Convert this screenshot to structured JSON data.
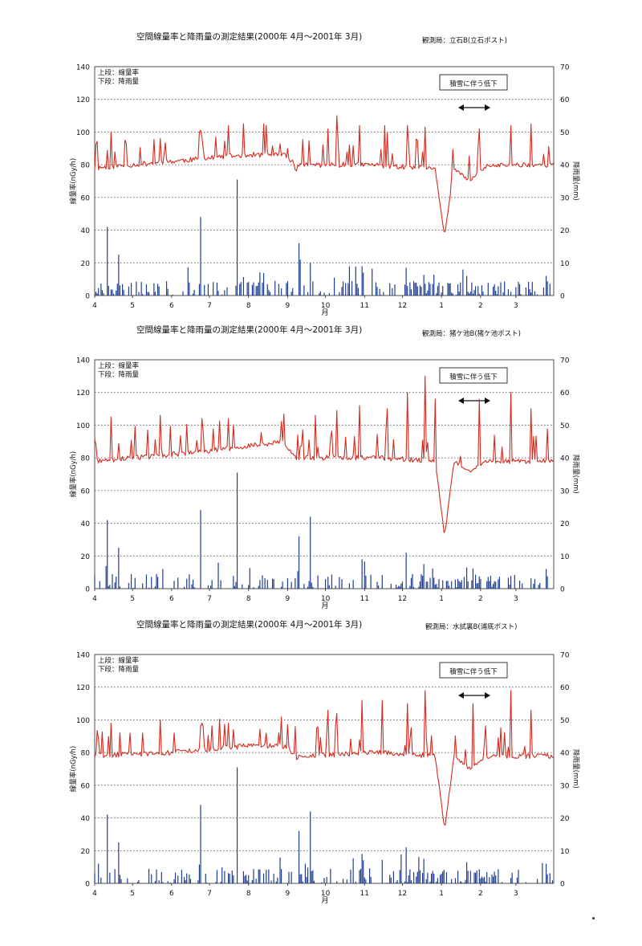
{
  "chart_data": [
    {
      "type": "line",
      "title": "空間線量率と降雨量の測定結果(2000年 4月～2001年 3月)",
      "station": "観測局：立石B(立石ポスト)",
      "legend": [
        "上段：線量率",
        "下段：降雨量"
      ],
      "annotation": "積雪に伴う低下",
      "xlabel": "月",
      "x_ticks": [
        "4",
        "5",
        "6",
        "7",
        "8",
        "9",
        "10",
        "11",
        "12",
        "1",
        "2",
        "3"
      ],
      "ylabel": "線量率(nGy/h)",
      "ylabel_right": "降雨量(mm)",
      "ylim": [
        0,
        140
      ],
      "ylim_right": [
        0,
        70
      ],
      "y_ticks": [
        0,
        20,
        40,
        60,
        80,
        100,
        120,
        140
      ],
      "y_ticks_right": [
        0,
        10,
        20,
        30,
        40,
        50,
        60,
        70
      ],
      "grid": "horizontal dotted",
      "series": [
        {
          "name": "線量率",
          "axis": "left",
          "color": "#d42a1e",
          "baseline": [
            [
              0,
              78
            ],
            [
              60,
              82
            ],
            [
              120,
              86
            ],
            [
              150,
              86
            ],
            [
              160,
              80
            ],
            [
              220,
              80
            ],
            [
              270,
              77
            ],
            [
              330,
              80
            ],
            [
              364,
              80
            ]
          ],
          "dips": [
            [
              158,
              161,
              75
            ],
            [
              270,
              285,
              36
            ],
            [
              285,
              310,
              70
            ]
          ],
          "peaks": [
            [
              13,
              100
            ],
            [
              52,
              96
            ],
            [
              85,
              97
            ],
            [
              106,
              104
            ],
            [
              185,
              102
            ],
            [
              192,
              110
            ],
            [
              210,
              104
            ],
            [
              230,
              104
            ],
            [
              248,
              104
            ],
            [
              262,
              103
            ],
            [
              305,
              102
            ],
            [
              330,
              104
            ],
            [
              346,
              105
            ]
          ]
        },
        {
          "name": "降雨量",
          "axis": "right",
          "color": "#1f3f8e",
          "peaks": [
            [
              10,
              21
            ],
            [
              19,
              12.5
            ],
            [
              84,
              24
            ],
            [
              113,
              35.5
            ],
            [
              162,
              16
            ],
            [
              163,
              11
            ],
            [
              171,
              10
            ],
            [
              212,
              9
            ],
            [
              247,
              8.5
            ],
            [
              261,
              6.3
            ],
            [
              295,
              6
            ],
            [
              358,
              6
            ]
          ]
        }
      ]
    },
    {
      "type": "line",
      "title": "空間線量率と降雨量の測定結果(2000年 4月～2001年 3月)",
      "station": "観測局：猪ケ池B(猪ケ池ポスト)",
      "legend": [
        "上段：線量率",
        "下段：降雨量"
      ],
      "annotation": "積雪に伴う低下",
      "xlabel": "月",
      "x_ticks": [
        "4",
        "5",
        "6",
        "7",
        "8",
        "9",
        "10",
        "11",
        "12",
        "1",
        "2",
        "3"
      ],
      "ylabel": "線量率(nGy/h)",
      "ylabel_right": "降雨量(mm)",
      "ylim": [
        0,
        140
      ],
      "ylim_right": [
        0,
        70
      ],
      "y_ticks": [
        0,
        20,
        40,
        60,
        80,
        100,
        120,
        140
      ],
      "y_ticks_right": [
        0,
        10,
        20,
        30,
        40,
        50,
        60,
        70
      ],
      "grid": "horizontal dotted",
      "series": [
        {
          "name": "線量率",
          "axis": "left",
          "color": "#d42a1e",
          "baseline": [
            [
              0,
              78
            ],
            [
              60,
              82
            ],
            [
              110,
              86
            ],
            [
              150,
              90
            ],
            [
              160,
              80
            ],
            [
              220,
              80
            ],
            [
              275,
              78
            ],
            [
              330,
              78
            ],
            [
              364,
              78
            ]
          ],
          "dips": [
            [
              160,
              163,
              78
            ],
            [
              270,
              285,
              32
            ],
            [
              285,
              310,
              72
            ]
          ],
          "peaks": [
            [
              13,
              105
            ],
            [
              52,
              106
            ],
            [
              85,
              104
            ],
            [
              106,
              104
            ],
            [
              175,
              106
            ],
            [
              192,
              109
            ],
            [
              210,
              112
            ],
            [
              232,
              110
            ],
            [
              248,
              120
            ],
            [
              262,
              130
            ],
            [
              270,
              116
            ],
            [
              305,
              116
            ],
            [
              330,
              120
            ],
            [
              346,
              110
            ]
          ]
        },
        {
          "name": "降雨量",
          "axis": "right",
          "color": "#1f3f8e",
          "peaks": [
            [
              10,
              21
            ],
            [
              19,
              12.5
            ],
            [
              84,
              24
            ],
            [
              113,
              35.5
            ],
            [
              162,
              16
            ],
            [
              171,
              22
            ],
            [
              212,
              9
            ],
            [
              247,
              11
            ],
            [
              261,
              7.5
            ],
            [
              295,
              6.5
            ],
            [
              358,
              6
            ]
          ]
        }
      ]
    },
    {
      "type": "line",
      "title": "空間線量率と降雨量の測定結果(2000年 4月～2001年 3月)",
      "station": "観測局：水試裏B(浦底ポスト)",
      "legend": [
        "上段：線量率",
        "下段：降雨量"
      ],
      "annotation": "積雪に伴う低下",
      "xlabel": "月",
      "x_ticks": [
        "4",
        "5",
        "6",
        "7",
        "8",
        "9",
        "10",
        "11",
        "12",
        "1",
        "2",
        "3"
      ],
      "ylabel": "線量率(nGy/h)",
      "ylabel_right": "降雨量(mm)",
      "ylim": [
        0,
        140
      ],
      "ylim_right": [
        0,
        70
      ],
      "y_ticks": [
        0,
        20,
        40,
        60,
        80,
        100,
        120,
        140
      ],
      "y_ticks_right": [
        0,
        10,
        20,
        30,
        40,
        50,
        60,
        70
      ],
      "grid": "horizontal dotted",
      "series": [
        {
          "name": "線量率",
          "axis": "left",
          "color": "#d42a1e",
          "baseline": [
            [
              0,
              78
            ],
            [
              60,
              80
            ],
            [
              120,
              84
            ],
            [
              150,
              84
            ],
            [
              160,
              78
            ],
            [
              220,
              80
            ],
            [
              275,
              78
            ],
            [
              330,
              78
            ],
            [
              364,
              78
            ]
          ],
          "dips": [
            [
              158,
              162,
              75
            ],
            [
              270,
              285,
              33
            ],
            [
              285,
              310,
              70
            ]
          ],
          "peaks": [
            [
              13,
              98
            ],
            [
              52,
              100
            ],
            [
              85,
              98
            ],
            [
              106,
              98
            ],
            [
              185,
              106
            ],
            [
              192,
              104
            ],
            [
              212,
              112
            ],
            [
              228,
              112
            ],
            [
              248,
              110
            ],
            [
              262,
              118
            ],
            [
              300,
              110
            ],
            [
              330,
              118
            ],
            [
              346,
              106
            ]
          ]
        },
        {
          "name": "降雨量",
          "axis": "right",
          "color": "#1f3f8e",
          "peaks": [
            [
              10,
              21
            ],
            [
              19,
              12.5
            ],
            [
              84,
              24
            ],
            [
              113,
              35.5
            ],
            [
              162,
              16
            ],
            [
              171,
              22
            ],
            [
              212,
              9
            ],
            [
              247,
              11
            ],
            [
              261,
              7.5
            ],
            [
              295,
              6.5
            ],
            [
              358,
              6
            ]
          ]
        }
      ]
    }
  ]
}
